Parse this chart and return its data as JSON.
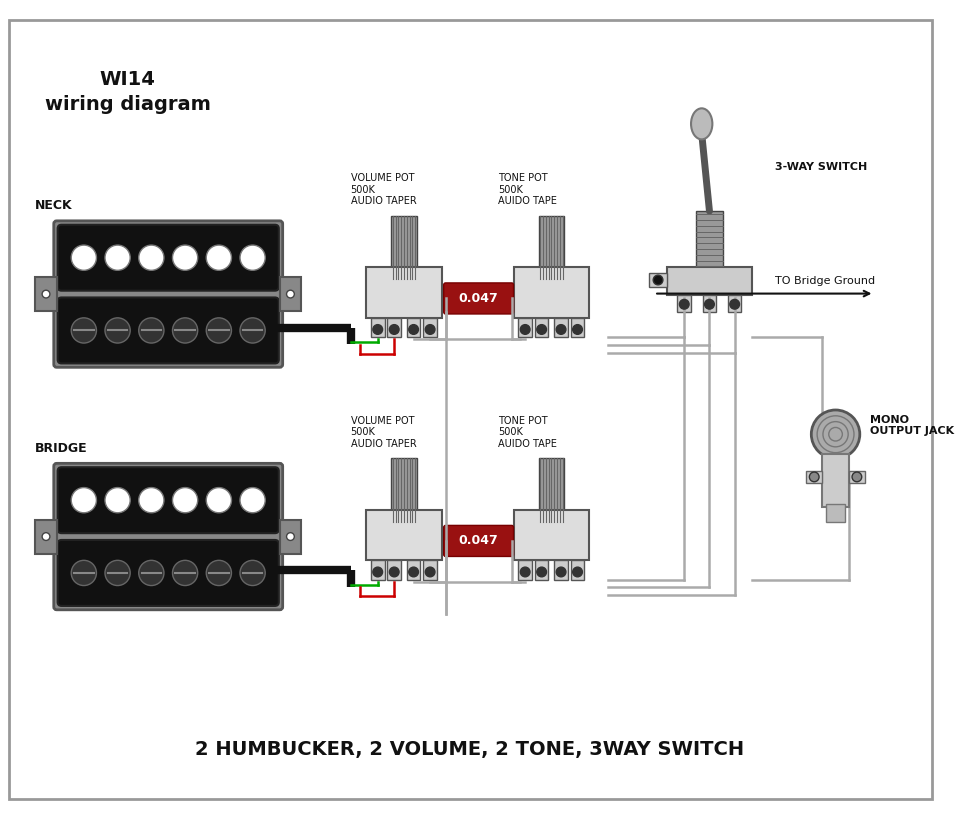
{
  "title_line1": "WI14",
  "title_line2": "wiring diagram",
  "bottom_label": "2 HUMBUCKER, 2 VOLUME, 2 TONE, 3WAY SWITCH",
  "neck_label": "NECK",
  "bridge_label": "BRIDGE",
  "vol_pot_label": "VOLUME POT\n500K\nAUDIO TAPER",
  "tone_pot_label": "TONE POT\n500K\nAUIDO TAPE",
  "switch_label": "3-WAY SWITCH",
  "output_label": "MONO\nOUTPUT JACK",
  "bridge_ground_label": "TO Bridge Ground",
  "cap_label": "0.047",
  "bg_color": "#ffffff",
  "border_color": "#999999",
  "wire_gray": "#aaaaaa",
  "wire_green": "#00aa00",
  "wire_red": "#cc0000",
  "wire_black": "#111111"
}
